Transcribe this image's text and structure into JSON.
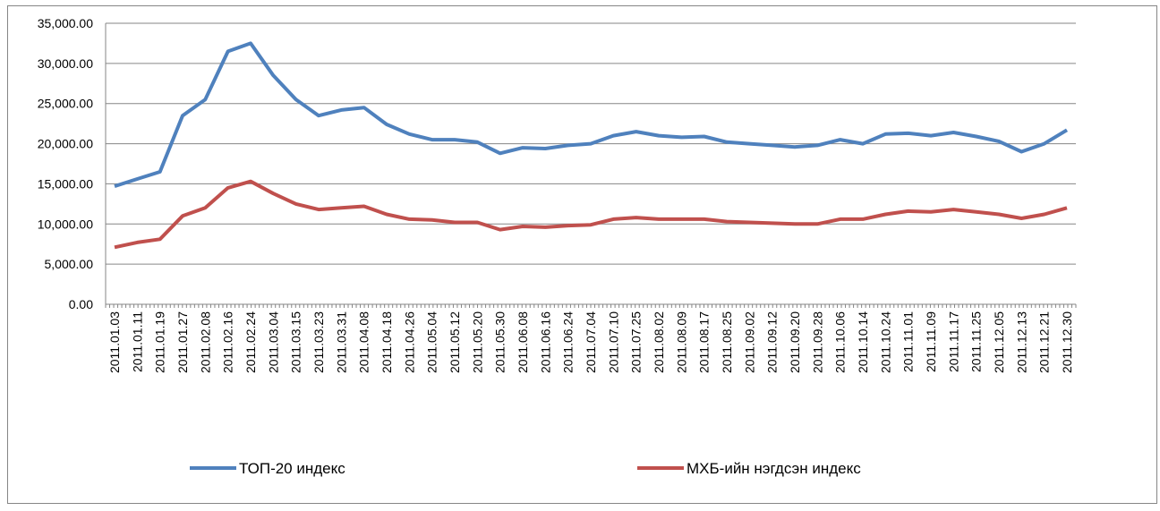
{
  "chart_data": {
    "type": "line",
    "categories": [
      "2011.01.03",
      "2011.01.11",
      "2011.01.19",
      "2011.01.27",
      "2011.02.08",
      "2011.02.16",
      "2011.02.24",
      "2011.03.04",
      "2011.03.15",
      "2011.03.23",
      "2011.03.31",
      "2011.04.08",
      "2011.04.18",
      "2011.04.26",
      "2011.05.04",
      "2011.05.12",
      "2011.05.20",
      "2011.05.30",
      "2011.06.08",
      "2011.06.16",
      "2011.06.24",
      "2011.07.04",
      "2011.07.10",
      "2011.07.25",
      "2011.08.02",
      "2011.08.09",
      "2011.08.17",
      "2011.08.25",
      "2011.09.02",
      "2011.09.12",
      "2011.09.20",
      "2011.09.28",
      "2011.10.06",
      "2011.10.14",
      "2011.10.24",
      "2011.11.01",
      "2011.11.09",
      "2011.11.17",
      "2011.11.25",
      "2011.12.05",
      "2011.12.13",
      "2011.12.21",
      "2011.12.30"
    ],
    "series": [
      {
        "name": "ТОП-20 индекс",
        "color": "#4f81bd",
        "values": [
          14700,
          15600,
          16500,
          23500,
          25500,
          31500,
          32500,
          28500,
          25500,
          23500,
          24200,
          24500,
          22400,
          21200,
          20500,
          20500,
          20200,
          18800,
          19500,
          19400,
          19800,
          20000,
          21000,
          21500,
          21000,
          20800,
          20900,
          20200,
          20000,
          19800,
          19600,
          19800,
          20500,
          20000,
          21200,
          21300,
          21000,
          21400,
          20900,
          20300,
          19000,
          20000,
          21700
        ]
      },
      {
        "name": "МХБ-ийн нэгдсэн индекс",
        "color": "#c0504d",
        "values": [
          7100,
          7700,
          8100,
          11000,
          12000,
          14500,
          15300,
          13800,
          12500,
          11800,
          12000,
          12200,
          11200,
          10600,
          10500,
          10200,
          10200,
          9300,
          9700,
          9600,
          9800,
          9900,
          10600,
          10800,
          10600,
          10600,
          10600,
          10300,
          10200,
          10100,
          10000,
          10000,
          10600,
          10600,
          11200,
          11600,
          11500,
          11800,
          11500,
          11200,
          10700,
          11200,
          12000
        ]
      }
    ],
    "ylim": [
      0,
      35000
    ],
    "yticks": [
      {
        "value": 0,
        "label": "0.00"
      },
      {
        "value": 5000,
        "label": "5,000.00"
      },
      {
        "value": 10000,
        "label": "10,000.00"
      },
      {
        "value": 15000,
        "label": "15,000.00"
      },
      {
        "value": 20000,
        "label": "20,000.00"
      },
      {
        "value": 25000,
        "label": "25,000.00"
      },
      {
        "value": 30000,
        "label": "30,000.00"
      },
      {
        "value": 35000,
        "label": "35,000.00"
      }
    ],
    "grid": true,
    "legend": "bottom"
  }
}
